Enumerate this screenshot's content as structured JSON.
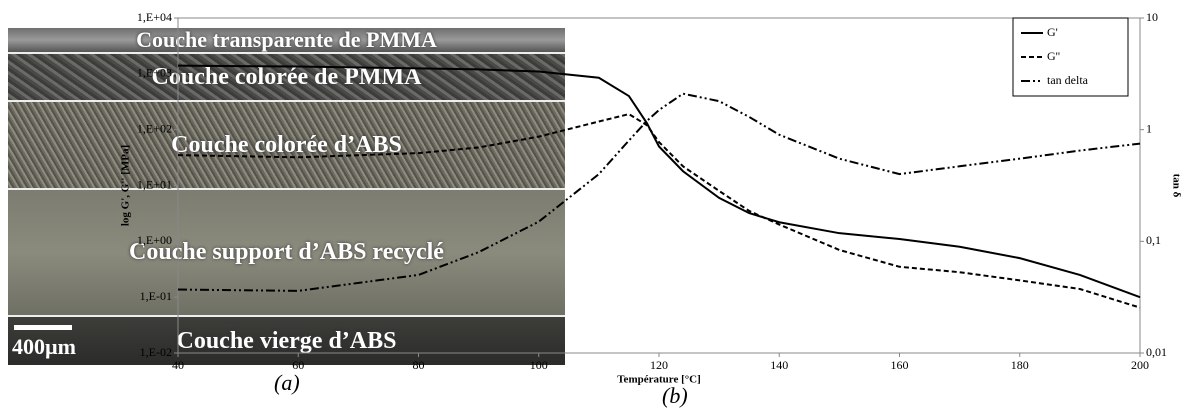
{
  "image_panel": {
    "layers": [
      "Couche transparente de PMMA",
      "Couche colorée de PMMA",
      "Couche colorée d’ABS",
      "Couche support d’ABS recyclé",
      "Couche vierge d’ABS"
    ],
    "scale_bar": "400µm",
    "caption": "(a)"
  },
  "chart_data": {
    "type": "line",
    "caption": "(b)",
    "xlabel": "Température [°C]",
    "ylabel": "log G', G'' [MPa]",
    "y2label": "tan δ",
    "x": [
      40,
      60,
      80,
      90,
      100,
      110,
      115,
      118,
      120,
      124,
      130,
      135,
      140,
      150,
      160,
      170,
      180,
      190,
      200
    ],
    "series": [
      {
        "name": "G'",
        "color": "#000000",
        "dash": "solid",
        "values": [
          1400,
          1350,
          1250,
          1200,
          1100,
          850,
          400,
          130,
          50,
          18,
          6,
          3.2,
          2.2,
          1.4,
          1.1,
          0.8,
          0.5,
          0.25,
          0.1
        ]
      },
      {
        "name": "G''",
        "color": "#000000",
        "dash": "dashed",
        "values": [
          35,
          32,
          38,
          48,
          75,
          140,
          190,
          120,
          60,
          22,
          8,
          3.5,
          2,
          0.7,
          0.35,
          0.28,
          0.2,
          0.14,
          0.065
        ]
      },
      {
        "name": "tan delta",
        "color": "#000000",
        "dash": "dashdot",
        "axis": "y2",
        "values": [
          0.037,
          0.036,
          0.05,
          0.08,
          0.15,
          0.4,
          0.8,
          1.2,
          1.5,
          2.1,
          1.8,
          1.3,
          0.9,
          0.55,
          0.4,
          0.47,
          0.55,
          0.65,
          0.75
        ]
      }
    ],
    "xlim": [
      40,
      200
    ],
    "xticks": [
      40,
      60,
      80,
      100,
      120,
      140,
      160,
      180,
      200
    ],
    "ylog": true,
    "ylim": [
      0.01,
      10000
    ],
    "yticks": [
      {
        "value": 0.01,
        "label": "1,E-02"
      },
      {
        "value": 0.1,
        "label": "1,E-01"
      },
      {
        "value": 1,
        "label": "1,E+00"
      },
      {
        "value": 10,
        "label": "1,E+01"
      },
      {
        "value": 100,
        "label": "1,E+02"
      },
      {
        "value": 1000,
        "label": "1,E+03"
      },
      {
        "value": 10000,
        "label": "1,E+04"
      }
    ],
    "y2log": true,
    "y2lim": [
      0.01,
      10
    ],
    "y2ticks": [
      {
        "value": 0.01,
        "label": "0,01"
      },
      {
        "value": 0.1,
        "label": "0,1"
      },
      1,
      10
    ],
    "legend": "upper right"
  }
}
